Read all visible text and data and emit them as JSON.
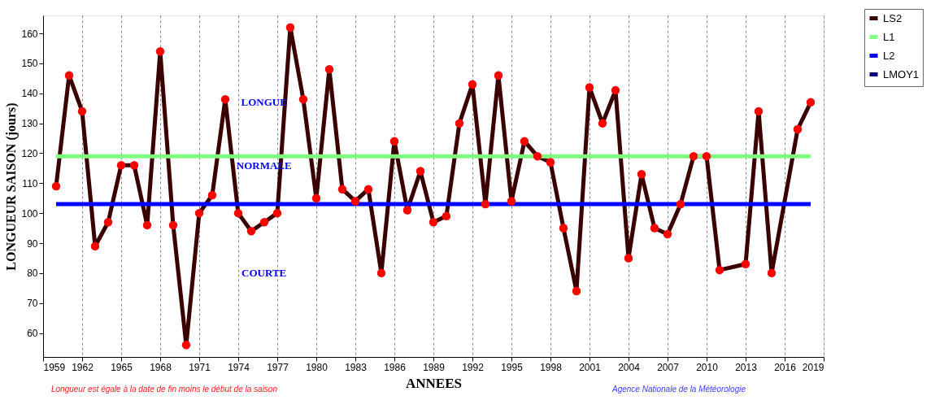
{
  "chart_data": {
    "type": "line",
    "xlabel": "ANNEES",
    "ylabel": "LONGUEUR SAISON (jours)",
    "xlim": [
      1959,
      2019
    ],
    "xticks": [
      1959,
      1962,
      1965,
      1968,
      1971,
      1974,
      1977,
      1980,
      1983,
      1986,
      1989,
      1992,
      1995,
      1998,
      2001,
      2004,
      2007,
      2010,
      2013,
      2016,
      2019
    ],
    "ylim": [
      52,
      166
    ],
    "yticks": [
      60,
      70,
      80,
      90,
      100,
      110,
      120,
      130,
      140,
      150,
      160
    ],
    "grid": "x",
    "legend": "top right",
    "line_style": "solid",
    "series": [
      {
        "name": "LS2",
        "color": "#3a0000",
        "marker": "circle",
        "x": [
          1960,
          1961,
          1962,
          1963,
          1964,
          1965,
          1966,
          1967,
          1968,
          1969,
          1970,
          1971,
          1972,
          1973,
          1974,
          1975,
          1976,
          1977,
          1978,
          1979,
          1980,
          1981,
          1982,
          1983,
          1984,
          1985,
          1986,
          1987,
          1988,
          1989,
          1990,
          1991,
          1992,
          1993,
          1994,
          1995,
          1996,
          1997,
          1998,
          1999,
          2000,
          2001,
          2002,
          2003,
          2004,
          2005,
          2006,
          2007,
          2008,
          2009,
          2010,
          2011,
          2013,
          2014,
          2015,
          2017,
          2018
        ],
        "values": [
          109,
          146,
          134,
          89,
          97,
          116,
          116,
          96,
          154,
          96,
          56,
          100,
          106,
          138,
          100,
          94,
          97,
          100,
          162,
          138,
          105,
          148,
          108,
          104,
          108,
          80,
          124,
          101,
          114,
          97,
          99,
          130,
          143,
          103,
          146,
          104,
          124,
          119,
          117,
          95,
          74,
          142,
          130,
          141,
          85,
          113,
          95,
          93,
          103,
          119,
          119,
          81,
          83,
          134,
          80,
          128,
          137
        ],
        "colors": [
          "#ff0000",
          "#ff0000",
          "#ff0000",
          "#ff0000",
          "#ff0000",
          "#ff0000",
          "#ff0000",
          "#ff0000",
          "#ff0000",
          "#ff0000",
          "#ff0000",
          "#ff0000",
          "#ff0000",
          "#ff0000",
          "#ff0000",
          "#ff0000",
          "#ff0000",
          "#ff0000",
          "#ff0000",
          "#ff0000",
          "#ff0000",
          "#ff0000",
          "#ff0000",
          "#ff0000",
          "#ff0000",
          "#ff0000",
          "#ff0000",
          "#ff0000",
          "#ff0000",
          "#ff0000",
          "#ff0000",
          "#ff0000",
          "#ff0000",
          "#ff0000",
          "#ff0000",
          "#ff0000",
          "#ff0000",
          "#ff0000",
          "#ff0000",
          "#ff0000",
          "#ff0000",
          "#ff0000",
          "#ff0000",
          "#ff0000",
          "#ff0000",
          "#ff0000",
          "#ff0000",
          "#ff0000",
          "#ff0000",
          "#ff0000",
          "#ff0000",
          "#ff0000",
          "#ff0000",
          "#ff0000",
          "#ff0000",
          "#ff0000",
          "#ff0000"
        ]
      },
      {
        "name": "L1",
        "color": "#80ff80",
        "marker": "none",
        "x": [
          1960,
          2018
        ],
        "values": [
          119,
          119
        ]
      },
      {
        "name": "L2",
        "color": "#0000ff",
        "marker": "none",
        "x": [
          1960,
          2018
        ],
        "values": [
          103,
          103
        ]
      },
      {
        "name": "LMOY1",
        "color": "#000080"
      }
    ],
    "annotations": [
      "LONGUE",
      "NORMALE",
      "COURTE",
      "Longueur est égale à la date de fin moins le début de la saison",
      "Agence Nationale de la Météorologie"
    ]
  }
}
